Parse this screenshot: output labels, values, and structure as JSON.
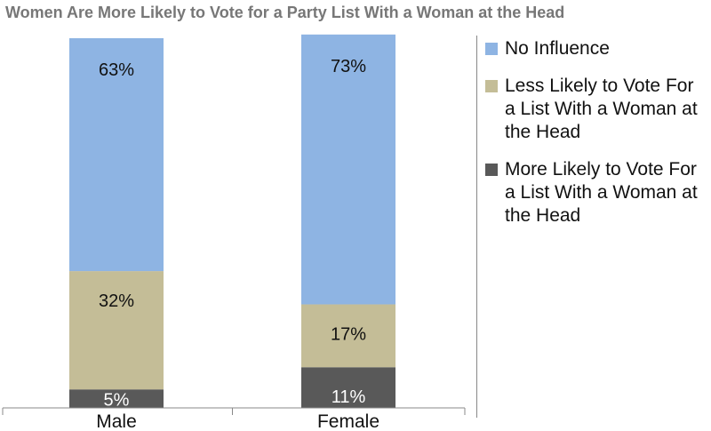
{
  "chart_data": {
    "type": "bar",
    "stacked": true,
    "title": "Women Are More Likely to Vote for a Party List With a Woman at the Head",
    "categories": [
      "Male",
      "Female"
    ],
    "series": [
      {
        "name": "More Likely to Vote For a List With a Woman at the Head",
        "values": [
          5,
          11
        ],
        "labels": [
          "5%",
          "11%"
        ],
        "color": "#595959"
      },
      {
        "name": "Less Likely to Vote For a List With a Woman at the Head",
        "values": [
          32,
          17
        ],
        "labels": [
          "32%",
          "17%"
        ],
        "color": "#c4bd97"
      },
      {
        "name": "No Influence",
        "values": [
          63,
          73
        ],
        "labels": [
          "63%",
          "73%"
        ],
        "color": "#8eb4e3"
      }
    ],
    "legend_order": [
      2,
      1,
      0
    ],
    "legend": "right",
    "ylim": [
      0,
      100
    ],
    "grid": false
  }
}
